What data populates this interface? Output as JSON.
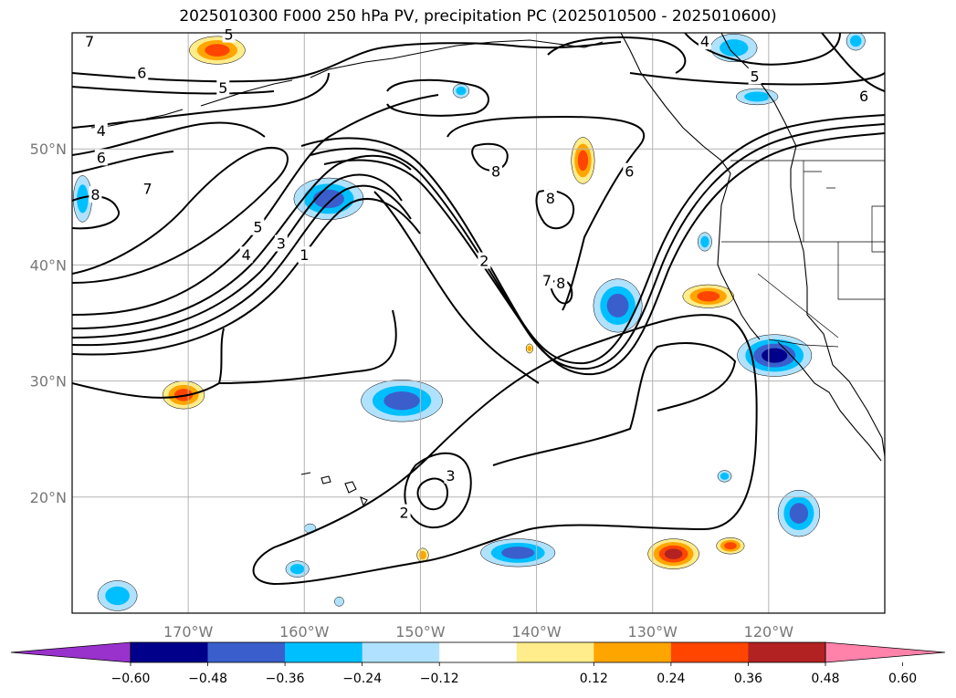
{
  "title": "2025010300 F000 250 hPa PV, precipitation PC (2025010500 - 2025010600)",
  "chart_data": {
    "type": "contour-map",
    "title": "2025010300 F000 250 hPa PV, precipitation PC (2025010500 - 2025010600)",
    "lon_range": [
      -180,
      -110
    ],
    "lat_range": [
      10,
      60
    ],
    "lon_ticks": [
      {
        "value": -170,
        "label": "170°W"
      },
      {
        "value": -160,
        "label": "160°W"
      },
      {
        "value": -150,
        "label": "150°W"
      },
      {
        "value": -140,
        "label": "140°W"
      },
      {
        "value": -130,
        "label": "130°W"
      },
      {
        "value": -120,
        "label": "120°W"
      }
    ],
    "lat_ticks": [
      {
        "value": 20,
        "label": "20°N"
      },
      {
        "value": 30,
        "label": "30°N"
      },
      {
        "value": 40,
        "label": "40°N"
      },
      {
        "value": 50,
        "label": "50°N"
      }
    ],
    "grid": true,
    "contour_variable": "250 hPa PV",
    "contour_labels": [
      {
        "text": "7",
        "lon": -178.5,
        "lat": 59.2
      },
      {
        "text": "6",
        "lon": -174,
        "lat": 56.5
      },
      {
        "text": "5",
        "lon": -167,
        "lat": 55.2
      },
      {
        "text": "4",
        "lon": -177.5,
        "lat": 51.5
      },
      {
        "text": "6",
        "lon": -177.5,
        "lat": 49.2
      },
      {
        "text": "8",
        "lon": -178,
        "lat": 46.0
      },
      {
        "text": "7",
        "lon": -173.5,
        "lat": 46.5
      },
      {
        "text": "5",
        "lon": -164,
        "lat": 43.2
      },
      {
        "text": "4",
        "lon": -165,
        "lat": 40.8
      },
      {
        "text": "3",
        "lon": -162,
        "lat": 41.8
      },
      {
        "text": "1",
        "lon": -160,
        "lat": 40.8
      },
      {
        "text": "8",
        "lon": -143.5,
        "lat": 48.0
      },
      {
        "text": "8",
        "lon": -138.8,
        "lat": 45.7
      },
      {
        "text": "2",
        "lon": -144.5,
        "lat": 40.3
      },
      {
        "text": "6",
        "lon": -132,
        "lat": 48.0
      },
      {
        "text": "7",
        "lon": -139.1,
        "lat": 38.6
      },
      {
        "text": "8",
        "lon": -137.9,
        "lat": 38.4
      },
      {
        "text": "4",
        "lon": -125.5,
        "lat": 59.2
      },
      {
        "text": "5",
        "lon": -121.2,
        "lat": 56.2
      },
      {
        "text": "6",
        "lon": -111.8,
        "lat": 54.5
      },
      {
        "text": "5",
        "lon": -166.5,
        "lat": 59.8
      },
      {
        "text": "3",
        "lon": -147.4,
        "lat": 21.8
      },
      {
        "text": "2",
        "lon": -151.4,
        "lat": 18.6
      }
    ],
    "fill_variable": "precipitation PC",
    "colorbar": {
      "extend": "both",
      "levels": [
        -0.72,
        -0.6,
        -0.48,
        -0.36,
        -0.24,
        -0.12,
        0.12,
        0.24,
        0.36,
        0.48,
        0.6,
        0.72
      ],
      "colors": [
        "#9932cc",
        "#00008b",
        "#3a5fcd",
        "#00bfff",
        "#b0e2ff",
        "#ffffff",
        "#ffec8b",
        "#ffa500",
        "#ff4500",
        "#b22222",
        "#ff82ab"
      ],
      "tick_labels": [
        "−0.60",
        "−0.48",
        "−0.36",
        "−0.24",
        "−0.12",
        "0.12",
        "0.24",
        "0.36",
        "0.48",
        "0.60"
      ]
    },
    "precip_blobs": [
      {
        "lon": -157.9,
        "lat": 45.7,
        "rx": 3.0,
        "ry": 1.8,
        "value": -0.45
      },
      {
        "lon": -151.6,
        "lat": 28.3,
        "rx": 3.5,
        "ry": 1.8,
        "value": -0.48
      },
      {
        "lon": -141.6,
        "lat": 15.2,
        "rx": 3.2,
        "ry": 1.2,
        "value": -0.42
      },
      {
        "lon": -179.1,
        "lat": 45.7,
        "rx": 0.8,
        "ry": 2.0,
        "value": -0.3
      },
      {
        "lon": -176.1,
        "lat": 11.5,
        "rx": 1.7,
        "ry": 1.3,
        "value": -0.3
      },
      {
        "lon": -160.6,
        "lat": 13.8,
        "rx": 1.0,
        "ry": 0.7,
        "value": -0.28
      },
      {
        "lon": -133.0,
        "lat": 36.5,
        "rx": 2.1,
        "ry": 2.3,
        "value": -0.42
      },
      {
        "lon": -123.0,
        "lat": 58.7,
        "rx": 2.0,
        "ry": 1.2,
        "value": -0.35
      },
      {
        "lon": -121.0,
        "lat": 54.5,
        "rx": 1.8,
        "ry": 0.7,
        "value": -0.35
      },
      {
        "lon": -112.5,
        "lat": 59.3,
        "rx": 0.8,
        "ry": 0.8,
        "value": -0.28
      },
      {
        "lon": -119.5,
        "lat": 32.2,
        "rx": 3.2,
        "ry": 1.8,
        "value": -0.55
      },
      {
        "lon": -117.4,
        "lat": 18.6,
        "rx": 1.8,
        "ry": 2.0,
        "value": -0.4
      },
      {
        "lon": -125.5,
        "lat": 42.0,
        "rx": 0.6,
        "ry": 0.8,
        "value": -0.28
      },
      {
        "lon": -123.8,
        "lat": 21.8,
        "rx": 0.6,
        "ry": 0.5,
        "value": -0.28
      },
      {
        "lon": -146.5,
        "lat": 55.0,
        "rx": 0.7,
        "ry": 0.6,
        "value": -0.28
      },
      {
        "lon": -159.5,
        "lat": 17.3,
        "rx": 0.5,
        "ry": 0.4,
        "value": -0.2
      },
      {
        "lon": -157.0,
        "lat": 11.0,
        "rx": 0.4,
        "ry": 0.4,
        "value": -0.2
      },
      {
        "lon": -167.5,
        "lat": 58.5,
        "rx": 2.4,
        "ry": 1.2,
        "value": 0.42
      },
      {
        "lon": -170.4,
        "lat": 28.8,
        "rx": 1.8,
        "ry": 1.2,
        "value": 0.4
      },
      {
        "lon": -136.0,
        "lat": 49.0,
        "rx": 1.0,
        "ry": 2.0,
        "value": 0.38
      },
      {
        "lon": -125.2,
        "lat": 37.3,
        "rx": 2.2,
        "ry": 1.0,
        "value": 0.45
      },
      {
        "lon": -128.2,
        "lat": 15.1,
        "rx": 2.2,
        "ry": 1.3,
        "value": 0.5
      },
      {
        "lon": -123.3,
        "lat": 15.8,
        "rx": 1.2,
        "ry": 0.7,
        "value": 0.4
      },
      {
        "lon": -149.8,
        "lat": 15.0,
        "rx": 0.5,
        "ry": 0.6,
        "value": 0.36
      },
      {
        "lon": -140.6,
        "lat": 32.8,
        "rx": 0.3,
        "ry": 0.4,
        "value": 0.3
      }
    ]
  }
}
